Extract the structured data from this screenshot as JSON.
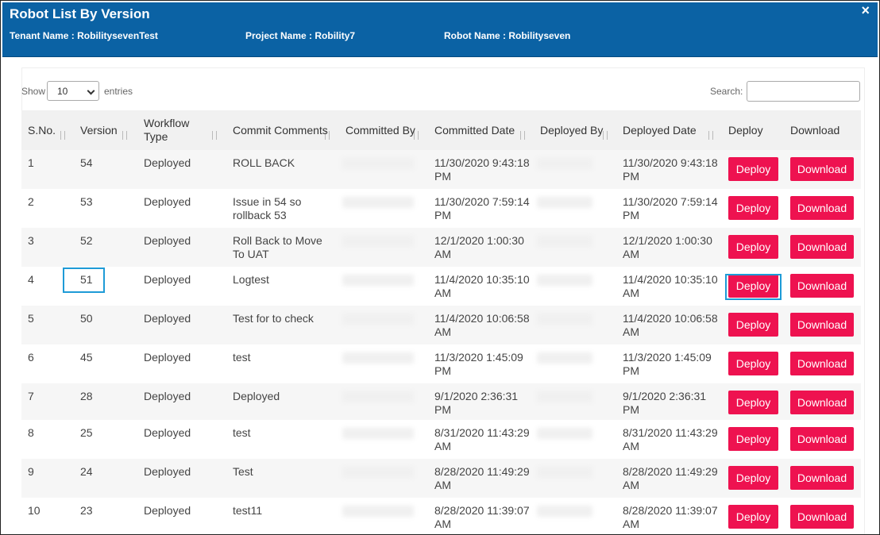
{
  "header": {
    "title": "Robot List By Version",
    "close": "×",
    "tenant": "Tenant Name : RobilitysevenTest",
    "project": "Project Name : Robility7",
    "robot": "Robot Name : Robilityseven"
  },
  "controls": {
    "show": "Show",
    "entries_value": "10",
    "entries": "entries",
    "search": "Search:"
  },
  "table": {
    "columns": [
      "S.No.",
      "Version",
      "Workflow Type",
      "Commit Comments",
      "Committed By",
      "Committed Date",
      "Deployed By",
      "Deployed Date",
      "Deploy",
      "Download"
    ],
    "deploy": "Deploy",
    "download": "Download",
    "rows": [
      [
        "1",
        "54",
        "Deployed",
        "ROLL BACK",
        "11/30/2020 9:43:18 PM",
        "11/30/2020 9:43:18 PM"
      ],
      [
        "2",
        "53",
        "Deployed",
        "Issue in 54 so rollback 53",
        "11/30/2020 7:59:14 PM",
        "11/30/2020 7:59:14 PM"
      ],
      [
        "3",
        "52",
        "Deployed",
        "Roll Back to Move To UAT",
        "12/1/2020 1:00:30 AM",
        "12/1/2020 1:00:30 AM"
      ],
      [
        "4",
        "51",
        "Deployed",
        "Logtest",
        "11/4/2020 10:35:10 AM",
        "11/4/2020 10:35:10 AM"
      ],
      [
        "5",
        "50",
        "Deployed",
        "Test for to check",
        "11/4/2020 10:06:58 AM",
        "11/4/2020 10:06:58 AM"
      ],
      [
        "6",
        "45",
        "Deployed",
        "test",
        "11/3/2020 1:45:09 PM",
        "11/3/2020 1:45:09 PM"
      ],
      [
        "7",
        "28",
        "Deployed",
        "Deployed",
        "9/1/2020 2:36:31 PM",
        "9/1/2020 2:36:31 PM"
      ],
      [
        "8",
        "25",
        "Deployed",
        "test",
        "8/31/2020 11:43:29 AM",
        "8/31/2020 11:43:29 AM"
      ],
      [
        "9",
        "24",
        "Deployed",
        "Test",
        "8/28/2020 11:49:29 AM",
        "8/28/2020 11:49:29 AM"
      ],
      [
        "10",
        "23",
        "Deployed",
        "test11",
        "8/28/2020 11:39:07 AM",
        "8/28/2020 11:39:07 AM"
      ]
    ]
  }
}
